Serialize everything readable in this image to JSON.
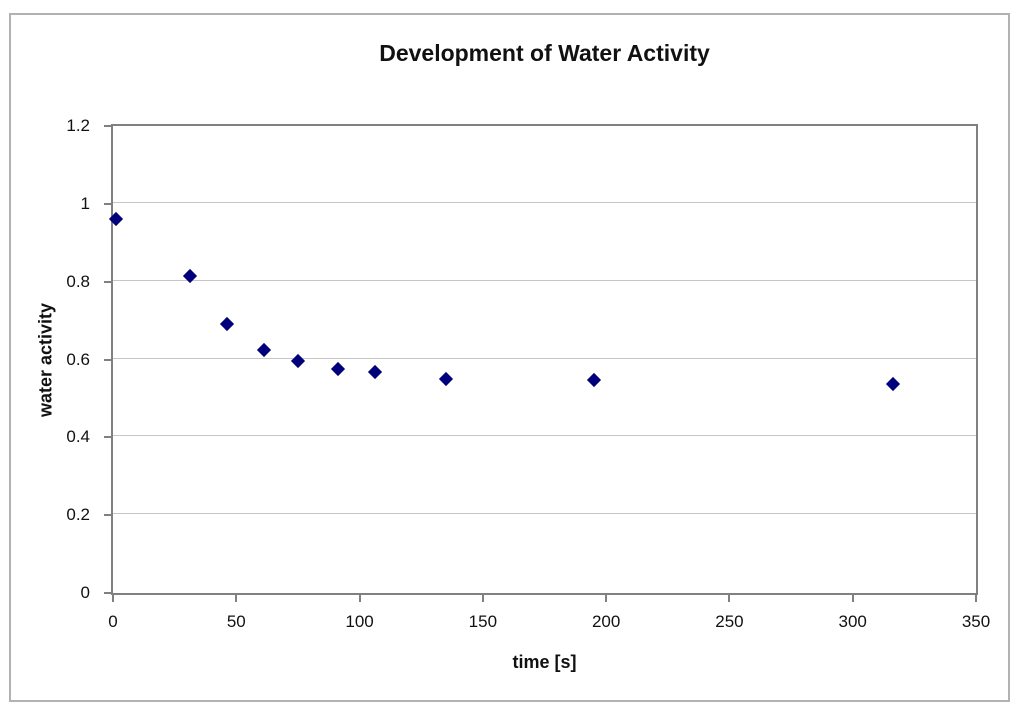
{
  "chart_data": {
    "type": "scatter",
    "title": "Development of Water Activity",
    "xlabel": "time [s]",
    "ylabel": "water activity",
    "xlim": [
      0,
      350
    ],
    "ylim": [
      0,
      1.2
    ],
    "xticks": [
      0,
      50,
      100,
      150,
      200,
      250,
      300,
      350
    ],
    "xtick_labels": [
      "0",
      "50",
      "100",
      "150",
      "200",
      "250",
      "300",
      "350"
    ],
    "yticks": [
      0,
      0.2,
      0.4,
      0.6,
      0.8,
      1,
      1.2
    ],
    "ytick_labels": [
      "0",
      "0.2",
      "0.4",
      "0.6",
      "0.8",
      "1",
      "1.2"
    ],
    "grid": "horizontal",
    "legend": "none",
    "marker": {
      "shape": "diamond",
      "color": "#00007d"
    },
    "colors": {
      "marker": "#00007d",
      "gridline": "#c6c6c6",
      "axis": "#808080",
      "frame_border": "#b2b2b2"
    },
    "series": [
      {
        "name": "water activity",
        "points": [
          {
            "x": 2,
            "y": 0.955
          },
          {
            "x": 32,
            "y": 0.81
          },
          {
            "x": 47,
            "y": 0.685
          },
          {
            "x": 62,
            "y": 0.62
          },
          {
            "x": 76,
            "y": 0.59
          },
          {
            "x": 92,
            "y": 0.571
          },
          {
            "x": 107,
            "y": 0.562
          },
          {
            "x": 136,
            "y": 0.546
          },
          {
            "x": 196,
            "y": 0.541
          },
          {
            "x": 317,
            "y": 0.531
          }
        ]
      }
    ]
  }
}
